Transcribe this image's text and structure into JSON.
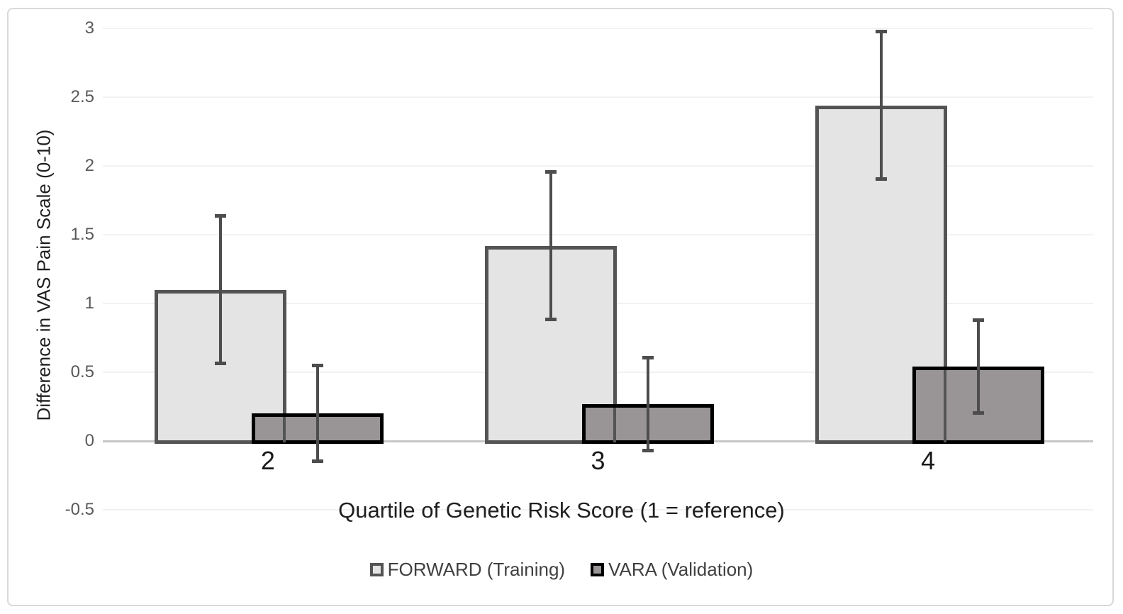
{
  "chart_data": {
    "type": "bar",
    "title": "",
    "xlabel": "Quartile of Genetic Risk Score (1 = reference)",
    "ylabel": "Difference in VAS Pain Scale (0-10)",
    "categories": [
      "2",
      "3",
      "4"
    ],
    "series": [
      {
        "name": "FORWARD (Training)",
        "values": [
          1.1,
          1.42,
          2.44
        ],
        "ci_low": [
          0.56,
          0.88,
          1.9
        ],
        "ci_high": [
          1.64,
          1.96,
          2.98
        ],
        "fill": "#e5e4e4",
        "border": "#545454"
      },
      {
        "name": "VARA (Validation)",
        "values": [
          0.2,
          0.27,
          0.54
        ],
        "ci_low": [
          -0.15,
          -0.07,
          0.2
        ],
        "ci_high": [
          0.55,
          0.61,
          0.88
        ],
        "fill": "#999495",
        "border": "#000000"
      }
    ],
    "ylim": [
      -0.5,
      3
    ],
    "yticks": [
      3,
      2.5,
      2,
      1.5,
      1,
      0.5,
      0,
      -0.5
    ],
    "ytick_labels": [
      "3",
      "2.5",
      "2",
      "1.5",
      "1",
      "0.5",
      "0",
      "-0.5"
    ],
    "grid": true,
    "legend_position": "bottom",
    "error_bar_color": "#4d4d4d",
    "gridline_color": "#f2f2f2",
    "axis_line_color": "#c7c7c7"
  }
}
